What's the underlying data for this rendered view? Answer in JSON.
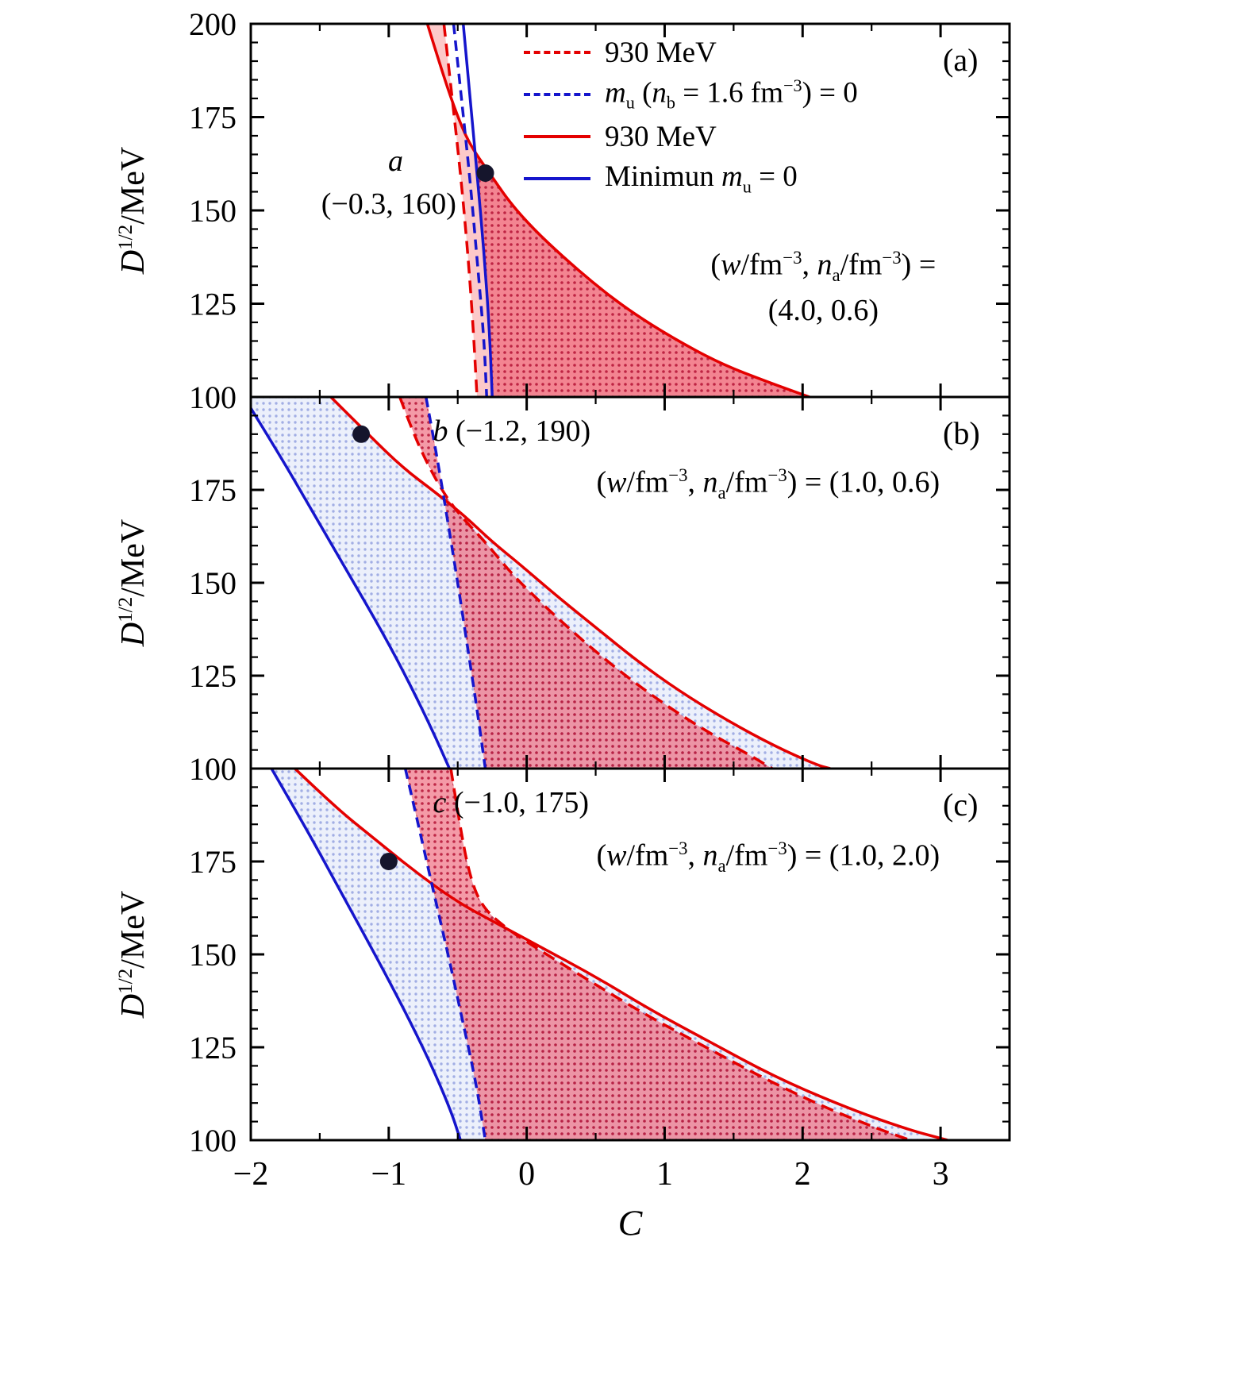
{
  "chart_data": {
    "type": "line",
    "xlabel": "*C*",
    "ylabel": "*D*^{1/2}/MeV",
    "x_axis": {
      "min": -2,
      "max": 3.5,
      "major": [
        {
          "v": -2,
          "t": "−2"
        },
        {
          "v": -1,
          "t": "−1"
        },
        {
          "v": 0,
          "t": "0"
        },
        {
          "v": 1,
          "t": "1"
        },
        {
          "v": 2,
          "t": "2"
        },
        {
          "v": 3,
          "t": "3"
        }
      ],
      "minor_step": 0.5
    },
    "y_axis": {
      "min": 100,
      "max": 200,
      "minor_step": 5
    },
    "colors": {
      "red": "#e40000",
      "blue": "#1515cc",
      "marker": "#15152c",
      "pink_light": "rgba(249,157,157,0.55)",
      "pink_dot_bg": "rgba(236,86,108,0.60)",
      "pink_dot": "rgba(178,12,48,0.80)",
      "blue_dot_bg": "rgba(170,185,235,0.22)",
      "blue_dot": "rgba(100,120,210,0.55)"
    },
    "legend": [
      {
        "color": "red",
        "style": "dashed",
        "label": "930 MeV"
      },
      {
        "color": "blue",
        "style": "dashed",
        "label": "*m*_{u} (*n*_{b} = 1.6 fm^{−3}) = 0"
      },
      {
        "color": "red",
        "style": "solid",
        "label": "930 MeV"
      },
      {
        "color": "blue",
        "style": "solid",
        "label": "Minimun *m*_{u} = 0"
      }
    ],
    "panels": [
      {
        "id": "a",
        "corner_label": "(a)",
        "y_tick_labels": [
          100,
          125,
          150,
          175,
          200
        ],
        "marker": {
          "x": -0.3,
          "y": 160
        },
        "series": {
          "red_solid": [
            [
              -0.72,
              200
            ],
            [
              -0.62,
              188
            ],
            [
              -0.52,
              177
            ],
            [
              -0.42,
              168
            ],
            [
              -0.27,
              160
            ],
            [
              -0.12,
              152
            ],
            [
              0.05,
              145
            ],
            [
              0.25,
              138
            ],
            [
              0.5,
              130
            ],
            [
              0.75,
              123
            ],
            [
              1.05,
              116
            ],
            [
              1.4,
              109
            ],
            [
              1.75,
              104
            ],
            [
              2.05,
              100
            ]
          ],
          "red_dashed": [
            [
              -0.6,
              200
            ],
            [
              -0.54,
              180
            ],
            [
              -0.48,
              160
            ],
            [
              -0.43,
              140
            ],
            [
              -0.39,
              120
            ],
            [
              -0.36,
              100
            ]
          ],
          "blue_dashed": [
            [
              -0.53,
              200
            ],
            [
              -0.47,
              179
            ],
            [
              -0.41,
              158
            ],
            [
              -0.36,
              137
            ],
            [
              -0.31,
              116
            ],
            [
              -0.29,
              100
            ]
          ],
          "blue_solid": [
            [
              -0.46,
              200
            ],
            [
              -0.41,
              180
            ],
            [
              -0.36,
              160
            ],
            [
              -0.31,
              139
            ],
            [
              -0.27,
              118
            ],
            [
              -0.25,
              100
            ]
          ]
        },
        "regions": [
          {
            "left": "red_dashed",
            "right": "red_solid",
            "fill": "pink_light",
            "clip": false
          },
          {
            "left": "blue_solid",
            "right": "red_solid",
            "fill": "pink_dark",
            "clip": true
          }
        ],
        "annotations": [
          {
            "text": "*a*",
            "x": -0.95,
            "y": 163,
            "align": "center"
          },
          {
            "text": "(−0.3, 160)",
            "x": -1.0,
            "y": 151.5,
            "align": "center"
          },
          {
            "text": "(*w*/fm^{−3}, *n*_{a}/fm^{−3}) =",
            "x": 2.15,
            "y": 135,
            "align": "center"
          },
          {
            "text": "(4.0, 0.6)",
            "x": 2.15,
            "y": 123,
            "align": "center"
          }
        ]
      },
      {
        "id": "b",
        "corner_label": "(b)",
        "y_tick_labels": [
          100,
          125,
          150,
          175
        ],
        "marker": {
          "x": -1.2,
          "y": 190
        },
        "series": {
          "red_solid": [
            [
              -1.42,
              200
            ],
            [
              -1.15,
              190
            ],
            [
              -0.9,
              181
            ],
            [
              -0.65,
              174
            ],
            [
              -0.45,
              168
            ],
            [
              -0.25,
              161
            ],
            [
              -0.05,
              155
            ],
            [
              0.2,
              147
            ],
            [
              0.5,
              138
            ],
            [
              0.8,
              129
            ],
            [
              1.1,
              121
            ],
            [
              1.45,
              113
            ],
            [
              1.8,
              106
            ],
            [
              2.1,
              101
            ],
            [
              2.2,
              100
            ]
          ],
          "red_dashed": [
            [
              -0.92,
              200
            ],
            [
              -0.83,
              191
            ],
            [
              -0.72,
              182
            ],
            [
              -0.6,
              174
            ],
            [
              -0.48,
              168
            ],
            [
              -0.3,
              161
            ],
            [
              -0.1,
              152
            ],
            [
              0.15,
              143
            ],
            [
              0.45,
              133
            ],
            [
              0.75,
              124
            ],
            [
              1.05,
              116
            ],
            [
              1.35,
              109
            ],
            [
              1.6,
              104
            ],
            [
              1.78,
              100
            ]
          ],
          "blue_dashed": [
            [
              -0.73,
              200
            ],
            [
              -0.65,
              184
            ],
            [
              -0.57,
              166
            ],
            [
              -0.5,
              150
            ],
            [
              -0.43,
              133
            ],
            [
              -0.36,
              116
            ],
            [
              -0.3,
              100
            ]
          ],
          "blue_solid": [
            [
              -2.05,
              200
            ],
            [
              -1.8,
              185
            ],
            [
              -1.55,
              169
            ],
            [
              -1.3,
              153
            ],
            [
              -1.05,
              137
            ],
            [
              -0.85,
              123
            ],
            [
              -0.68,
              110
            ],
            [
              -0.56,
              100
            ]
          ]
        },
        "regions": [
          {
            "left": "blue_solid",
            "right": "red_solid",
            "fill": "blue_dots",
            "clip": false
          },
          {
            "left": "blue_dashed",
            "right": "red_dashed",
            "fill": "pink_dark",
            "clip": false
          }
        ],
        "annotations": [
          {
            "text": "*b* (−1.2, 190)",
            "x": -0.68,
            "y": 190.5,
            "align": "left"
          },
          {
            "text": "(*w*/fm^{−3}, *n*_{a}/fm^{−3}) = (1.0, 0.6)",
            "x": 1.75,
            "y": 176.5,
            "align": "center"
          }
        ]
      },
      {
        "id": "c",
        "corner_label": "(c)",
        "y_tick_labels": [
          100,
          125,
          150,
          175
        ],
        "marker": {
          "x": -1.0,
          "y": 175
        },
        "series": {
          "red_solid": [
            [
              -1.68,
              200
            ],
            [
              -1.4,
              190
            ],
            [
              -1.1,
              181
            ],
            [
              -0.8,
              172
            ],
            [
              -0.5,
              164
            ],
            [
              -0.2,
              158
            ],
            [
              0.1,
              152
            ],
            [
              0.5,
              144
            ],
            [
              0.9,
              135
            ],
            [
              1.3,
              127
            ],
            [
              1.8,
              117
            ],
            [
              2.3,
              109
            ],
            [
              2.75,
              103
            ],
            [
              3.05,
              100
            ]
          ],
          "red_dashed": [
            [
              -0.55,
              200
            ],
            [
              -0.49,
              186
            ],
            [
              -0.42,
              172
            ],
            [
              -0.33,
              163
            ],
            [
              -0.15,
              157
            ],
            [
              0.1,
              151
            ],
            [
              0.45,
              143
            ],
            [
              0.85,
              134
            ],
            [
              1.25,
              126
            ],
            [
              1.7,
              117
            ],
            [
              2.15,
              109
            ],
            [
              2.55,
              103
            ],
            [
              2.78,
              100
            ]
          ],
          "blue_dashed": [
            [
              -0.88,
              200
            ],
            [
              -0.78,
              184
            ],
            [
              -0.67,
              166
            ],
            [
              -0.57,
              150
            ],
            [
              -0.47,
              133
            ],
            [
              -0.37,
              116
            ],
            [
              -0.3,
              100
            ]
          ],
          "blue_solid": [
            [
              -1.85,
              200
            ],
            [
              -1.6,
              184
            ],
            [
              -1.35,
              167
            ],
            [
              -1.1,
              150
            ],
            [
              -0.9,
              136
            ],
            [
              -0.7,
              121
            ],
            [
              -0.55,
              108
            ],
            [
              -0.48,
              100
            ]
          ]
        },
        "regions": [
          {
            "left": "blue_solid",
            "right": "red_solid",
            "fill": "blue_dots",
            "clip": false
          },
          {
            "left": "blue_dashed",
            "right": "red_dashed",
            "fill": "pink_dark",
            "clip": false
          }
        ],
        "annotations": [
          {
            "text": "*c* (−1.0, 175)",
            "x": -0.68,
            "y": 190.5,
            "align": "left"
          },
          {
            "text": "(*w*/fm^{−3}, *n*_{a}/fm^{−3}) = (1.0, 2.0)",
            "x": 1.75,
            "y": 176,
            "align": "center"
          }
        ]
      }
    ]
  }
}
